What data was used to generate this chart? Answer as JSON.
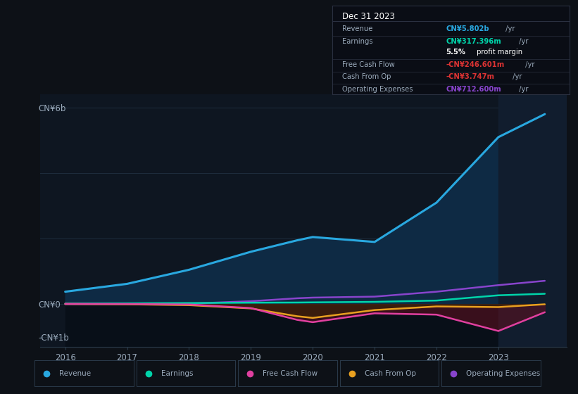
{
  "background_color": "#0d1117",
  "plot_bg_color": "#0e1621",
  "years": [
    2016,
    2017,
    2018,
    2019,
    2019.75,
    2020,
    2021,
    2022,
    2023,
    2023.75
  ],
  "revenue_m": [
    380,
    620,
    1050,
    1600,
    1950,
    2050,
    1900,
    3100,
    5100,
    5802
  ],
  "earnings_m": [
    20,
    25,
    35,
    45,
    50,
    55,
    70,
    110,
    270,
    317
  ],
  "fcf_m": [
    10,
    5,
    -10,
    -120,
    -480,
    -550,
    -280,
    -320,
    -820,
    -247
  ],
  "cfo_m": [
    5,
    -5,
    -30,
    -130,
    -370,
    -420,
    -180,
    -70,
    -90,
    -4
  ],
  "opex_m": [
    0,
    5,
    15,
    90,
    180,
    200,
    230,
    380,
    580,
    713
  ],
  "revenue_color": "#29a8e0",
  "earnings_color": "#00d4aa",
  "fcf_color": "#e040a0",
  "cfo_color": "#e8a020",
  "opex_color": "#8844cc",
  "revenue_fill": "#0e2a44",
  "highlight_color": "#111d2e",
  "grid_color": "#1e2d3d",
  "axis_color": "#2a3a4a",
  "text_color": "#9aaabb",
  "white": "#ffffff",
  "ylim_min_m": -1300,
  "ylim_max_m": 6400,
  "ytick_labels_pos_m": [
    -1000,
    0,
    6000
  ],
  "ytick_labels": [
    "-CN¥1b",
    "CN¥0",
    "CN¥6b"
  ],
  "xmin": 2015.6,
  "xmax": 2024.1,
  "highlight_start": 2023.0,
  "info_title": "Dec 31 2023",
  "info_rows": [
    {
      "label": "Revenue",
      "value": "CN¥5.802b",
      "suffix": " /yr",
      "color": "#29a8e0"
    },
    {
      "label": "Earnings",
      "value": "CN¥317.396m",
      "suffix": " /yr",
      "color": "#00d4aa"
    },
    {
      "label": "",
      "value": "5.5%",
      "suffix": " profit margin",
      "color": "#ffffff"
    },
    {
      "label": "Free Cash Flow",
      "value": "-CN¥246.601m",
      "suffix": " /yr",
      "color": "#dd3333"
    },
    {
      "label": "Cash From Op",
      "value": "-CN¥3.747m",
      "suffix": " /yr",
      "color": "#dd3333"
    },
    {
      "label": "Operating Expenses",
      "value": "CN¥712.600m",
      "suffix": " /yr",
      "color": "#8844cc"
    }
  ],
  "legend_items": [
    {
      "label": "Revenue",
      "color": "#29a8e0"
    },
    {
      "label": "Earnings",
      "color": "#00d4aa"
    },
    {
      "label": "Free Cash Flow",
      "color": "#e040a0"
    },
    {
      "label": "Cash From Op",
      "color": "#e8a020"
    },
    {
      "label": "Operating Expenses",
      "color": "#8844cc"
    }
  ]
}
